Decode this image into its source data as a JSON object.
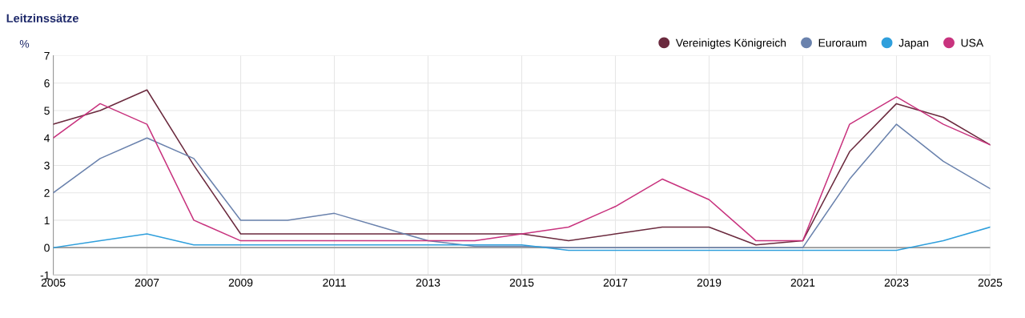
{
  "chart_data": {
    "type": "line",
    "title": "Leitzinssätze",
    "ylabel": "%",
    "x": [
      2005,
      2006,
      2007,
      2008,
      2009,
      2010,
      2011,
      2012,
      2013,
      2014,
      2015,
      2016,
      2017,
      2018,
      2019,
      2020,
      2021,
      2022,
      2023,
      2024,
      2025
    ],
    "series": [
      {
        "name": "Vereinigtes Königreich",
        "color": "#6b2a3e",
        "values": [
          4.5,
          5,
          5.75,
          3,
          0.5,
          0.5,
          0.5,
          0.5,
          0.5,
          0.5,
          0.5,
          0.25,
          0.5,
          0.75,
          0.75,
          0.1,
          0.25,
          3.5,
          5.25,
          4.75,
          3.75
        ]
      },
      {
        "name": "Euroraum",
        "color": "#6a82ad",
        "values": [
          2,
          3.25,
          4,
          3.25,
          1,
          1,
          1.25,
          0.75,
          0.25,
          0.05,
          0.05,
          0,
          0,
          0,
          0,
          0,
          0,
          2.5,
          4.5,
          3.15,
          2.15
        ]
      },
      {
        "name": "Japan",
        "color": "#2f9fdc",
        "values": [
          0,
          0.25,
          0.5,
          0.1,
          0.1,
          0.1,
          0.1,
          0.1,
          0.1,
          0.1,
          0.1,
          -0.1,
          -0.1,
          -0.1,
          -0.1,
          -0.1,
          -0.1,
          -0.1,
          -0.1,
          0.25,
          0.75
        ]
      },
      {
        "name": "USA",
        "color": "#c8337e",
        "values": [
          4,
          5.25,
          4.5,
          1,
          0.25,
          0.25,
          0.25,
          0.25,
          0.25,
          0.25,
          0.5,
          0.75,
          1.5,
          2.5,
          1.75,
          0.25,
          0.25,
          4.5,
          5.5,
          4.5,
          3.75
        ]
      }
    ],
    "xlim": [
      2005,
      2025
    ],
    "xticks": [
      2005,
      2007,
      2009,
      2011,
      2013,
      2015,
      2017,
      2019,
      2021,
      2023,
      2025
    ],
    "ylim": [
      -1,
      7
    ],
    "yticks": [
      -1,
      0,
      1,
      2,
      3,
      4,
      5,
      6,
      7
    ],
    "ref_lines": [
      {
        "axis": "y",
        "value": 0,
        "color": "#999999"
      }
    ],
    "grid": true,
    "legend": "top right",
    "marker": "none",
    "line_style": "solid"
  }
}
